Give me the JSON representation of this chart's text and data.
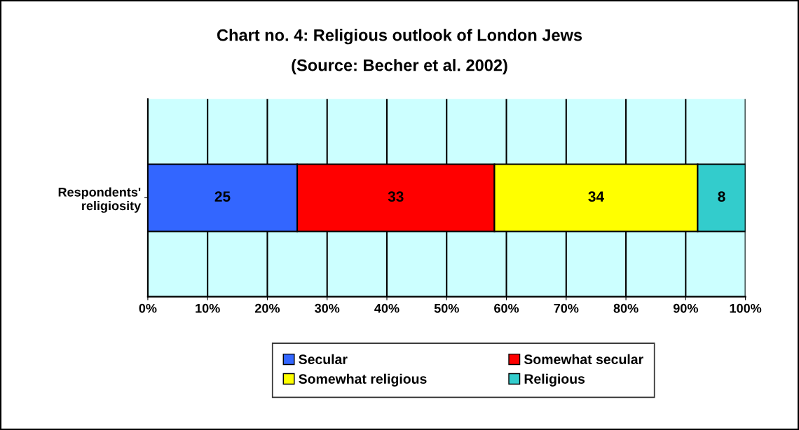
{
  "chart_data": {
    "type": "bar",
    "orientation": "horizontal",
    "stacked": true,
    "title": "Chart no. 4: Religious outlook of London Jews",
    "subtitle": "(Source: Becher et al. 2002)",
    "categories": [
      "Respondents'\nreligiosity"
    ],
    "series": [
      {
        "name": "Secular",
        "color": "#3366ff",
        "values": [
          25
        ]
      },
      {
        "name": "Somewhat secular",
        "color": "#ff0000",
        "values": [
          33
        ]
      },
      {
        "name": "Somewhat religious",
        "color": "#ffff00",
        "values": [
          34
        ]
      },
      {
        "name": "Religious",
        "color": "#33cccc",
        "values": [
          8
        ]
      }
    ],
    "xlim": [
      0,
      100
    ],
    "xticks": [
      {
        "value": 0,
        "label": "0%"
      },
      {
        "value": 10,
        "label": "10%"
      },
      {
        "value": 20,
        "label": "20%"
      },
      {
        "value": 30,
        "label": "30%"
      },
      {
        "value": 40,
        "label": "40%"
      },
      {
        "value": 50,
        "label": "50%"
      },
      {
        "value": 60,
        "label": "60%"
      },
      {
        "value": 70,
        "label": "70%"
      },
      {
        "value": 80,
        "label": "80%"
      },
      {
        "value": 90,
        "label": "90%"
      },
      {
        "value": 100,
        "label": "100%"
      }
    ],
    "data_labels": true,
    "grid": "x",
    "legend": "bottom"
  }
}
